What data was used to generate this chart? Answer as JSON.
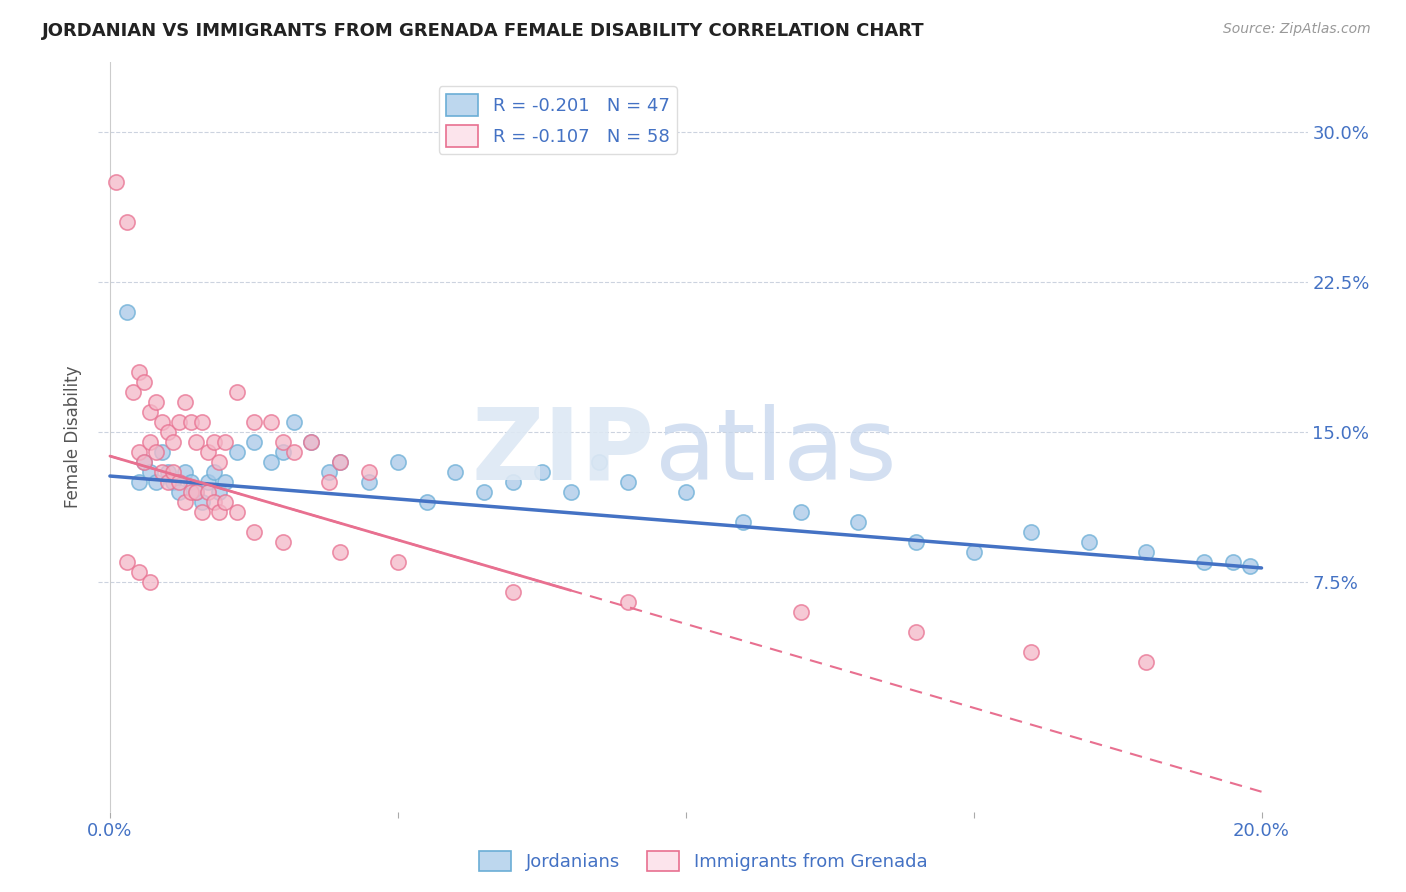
{
  "title": "JORDANIAN VS IMMIGRANTS FROM GRENADA FEMALE DISABILITY CORRELATION CHART",
  "source": "Source: ZipAtlas.com",
  "ylabel": "Female Disability",
  "legend_label1": "Jordanians",
  "legend_label2": "Immigrants from Grenada",
  "R1": -0.201,
  "N1": 47,
  "R2": -0.107,
  "N2": 58,
  "blue_dot_color": "#a8c8e8",
  "blue_dot_edge": "#6baed6",
  "pink_dot_color": "#f4b8c8",
  "pink_dot_edge": "#e87090",
  "blue_fill": "#bdd7ee",
  "pink_fill": "#fce4ec",
  "blue_line_color": "#4472c4",
  "pink_line_color": "#e87090",
  "axis_color": "#4472c4",
  "grid_color": "#c0c8d8",
  "background_color": "#ffffff",
  "xlim_min": -0.002,
  "xlim_max": 0.208,
  "ylim_min": -0.04,
  "ylim_max": 0.335,
  "blue_trend_x0": 0.0,
  "blue_trend_y0": 0.128,
  "blue_trend_x1": 0.2,
  "blue_trend_y1": 0.082,
  "pink_trend_x0": 0.0,
  "pink_trend_y0": 0.138,
  "pink_trend_x1": 0.2,
  "pink_trend_y1": -0.03,
  "jordanians_x": [
    0.003,
    0.005,
    0.006,
    0.007,
    0.008,
    0.009,
    0.01,
    0.011,
    0.012,
    0.013,
    0.014,
    0.015,
    0.016,
    0.017,
    0.018,
    0.019,
    0.02,
    0.022,
    0.025,
    0.028,
    0.03,
    0.032,
    0.035,
    0.038,
    0.04,
    0.045,
    0.05,
    0.055,
    0.06,
    0.065,
    0.07,
    0.075,
    0.08,
    0.085,
    0.09,
    0.1,
    0.11,
    0.12,
    0.13,
    0.14,
    0.15,
    0.16,
    0.17,
    0.18,
    0.19,
    0.195,
    0.198
  ],
  "jordanians_y": [
    0.21,
    0.125,
    0.135,
    0.13,
    0.125,
    0.14,
    0.13,
    0.125,
    0.12,
    0.13,
    0.125,
    0.12,
    0.115,
    0.125,
    0.13,
    0.12,
    0.125,
    0.14,
    0.145,
    0.135,
    0.14,
    0.155,
    0.145,
    0.13,
    0.135,
    0.125,
    0.135,
    0.115,
    0.13,
    0.12,
    0.125,
    0.13,
    0.12,
    0.135,
    0.125,
    0.12,
    0.105,
    0.11,
    0.105,
    0.095,
    0.09,
    0.1,
    0.095,
    0.09,
    0.085,
    0.085,
    0.083
  ],
  "grenada_x": [
    0.001,
    0.003,
    0.004,
    0.005,
    0.006,
    0.007,
    0.008,
    0.009,
    0.01,
    0.011,
    0.012,
    0.013,
    0.014,
    0.015,
    0.016,
    0.017,
    0.018,
    0.019,
    0.02,
    0.022,
    0.025,
    0.028,
    0.03,
    0.032,
    0.035,
    0.038,
    0.04,
    0.045,
    0.005,
    0.006,
    0.007,
    0.008,
    0.009,
    0.01,
    0.011,
    0.012,
    0.013,
    0.014,
    0.015,
    0.016,
    0.017,
    0.018,
    0.019,
    0.02,
    0.022,
    0.025,
    0.03,
    0.04,
    0.05,
    0.07,
    0.09,
    0.12,
    0.14,
    0.16,
    0.18,
    0.003,
    0.005,
    0.007
  ],
  "grenada_y": [
    0.275,
    0.255,
    0.17,
    0.18,
    0.175,
    0.16,
    0.165,
    0.155,
    0.15,
    0.145,
    0.155,
    0.165,
    0.155,
    0.145,
    0.155,
    0.14,
    0.145,
    0.135,
    0.145,
    0.17,
    0.155,
    0.155,
    0.145,
    0.14,
    0.145,
    0.125,
    0.135,
    0.13,
    0.14,
    0.135,
    0.145,
    0.14,
    0.13,
    0.125,
    0.13,
    0.125,
    0.115,
    0.12,
    0.12,
    0.11,
    0.12,
    0.115,
    0.11,
    0.115,
    0.11,
    0.1,
    0.095,
    0.09,
    0.085,
    0.07,
    0.065,
    0.06,
    0.05,
    0.04,
    0.035,
    0.085,
    0.08,
    0.075
  ]
}
